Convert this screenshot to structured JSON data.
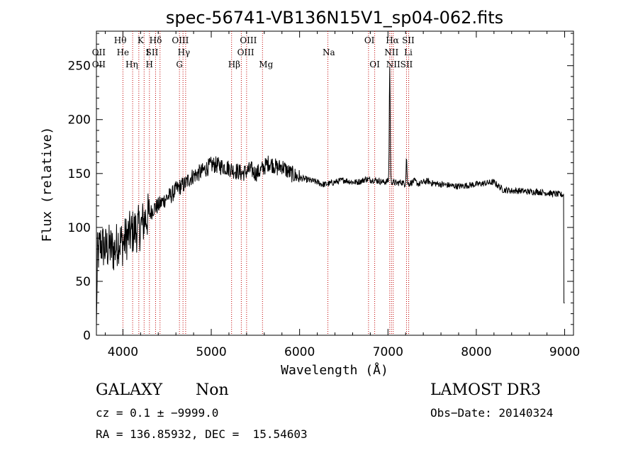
{
  "chart_data": {
    "type": "line",
    "title": "spec-56741-VB136N15V1_sp04-062.fits",
    "xlabel": "Wavelength (Å)",
    "ylabel": "Flux (relative)",
    "xlim": [
      3700,
      9100
    ],
    "ylim": [
      0,
      282
    ],
    "x_ticks": [
      4000,
      5000,
      6000,
      7000,
      8000,
      9000
    ],
    "y_ticks": [
      0,
      50,
      100,
      150,
      200,
      250
    ],
    "x_tick_labels": [
      "4000",
      "5000",
      "6000",
      "7000",
      "8000",
      "9000"
    ],
    "y_tick_labels": [
      "0",
      "50",
      "100",
      "150",
      "200",
      "250"
    ],
    "spectrum": {
      "wavelengths": [
        3700,
        3750,
        3800,
        3850,
        3900,
        3950,
        4000,
        4050,
        4100,
        4150,
        4200,
        4250,
        4300,
        4350,
        4400,
        4450,
        4500,
        4550,
        4600,
        4650,
        4700,
        4750,
        4800,
        4850,
        4900,
        4950,
        5000,
        5050,
        5100,
        5150,
        5200,
        5250,
        5300,
        5350,
        5400,
        5450,
        5500,
        5550,
        5600,
        5650,
        5700,
        5750,
        5800,
        5850,
        5900,
        5950,
        6000,
        6050,
        6100,
        6150,
        6200,
        6250,
        6300,
        6350,
        6400,
        6450,
        6500,
        6550,
        6600,
        6650,
        6700,
        6750,
        6800,
        6850,
        6900,
        6950,
        7000,
        7050,
        7100,
        7150,
        7200,
        7250,
        7300,
        7350,
        7400,
        7450,
        7500,
        7600,
        7700,
        7800,
        7900,
        8000,
        8100,
        8200,
        8300,
        8400,
        8500,
        8600,
        8700,
        8800,
        8900,
        9000
      ],
      "flux": [
        70,
        85,
        80,
        82,
        78,
        88,
        85,
        92,
        95,
        98,
        100,
        108,
        112,
        118,
        120,
        124,
        128,
        130,
        135,
        138,
        140,
        145,
        148,
        150,
        152,
        155,
        158,
        158,
        157,
        156,
        155,
        153,
        152,
        150,
        152,
        154,
        150,
        152,
        156,
        160,
        158,
        155,
        157,
        153,
        150,
        148,
        146,
        145,
        144,
        143,
        142,
        140,
        140,
        141,
        142,
        143,
        144,
        143,
        142,
        142,
        143,
        145,
        144,
        144,
        143,
        142,
        143,
        142,
        141,
        142,
        140,
        141,
        143,
        140,
        142,
        143,
        141,
        140,
        139,
        138,
        139,
        140,
        141,
        142,
        135,
        134,
        134,
        133,
        133,
        132,
        131,
        130
      ]
    },
    "emission_peaks": [
      {
        "wavelength": 7020,
        "flux": 250,
        "label": "Hα"
      },
      {
        "wavelength": 7210,
        "flux": 165,
        "label": "SII"
      }
    ],
    "spectral_lines": [
      {
        "wavelength": 3727,
        "label": "OII",
        "row": 2
      },
      {
        "wavelength": 3727,
        "label": "OII",
        "row": 3
      },
      {
        "wavelength": 3970,
        "label": "Hθ",
        "row": 1
      },
      {
        "wavelength": 4000,
        "label": "He",
        "row": 2
      },
      {
        "wavelength": 4100,
        "label": "Hη",
        "row": 3
      },
      {
        "wavelength": 4200,
        "label": "K",
        "row": 1
      },
      {
        "wavelength": 4280,
        "label": "I",
        "row": 2
      },
      {
        "wavelength": 4300,
        "label": "H",
        "row": 3
      },
      {
        "wavelength": 4330,
        "label": "SII",
        "row": 2
      },
      {
        "wavelength": 4370,
        "label": "Hδ",
        "row": 1
      },
      {
        "wavelength": 4650,
        "label": "OIII",
        "row": 1
      },
      {
        "wavelength": 4690,
        "label": "Hγ",
        "row": 2
      },
      {
        "wavelength": 4640,
        "label": "G",
        "row": 3
      },
      {
        "wavelength": 5260,
        "label": "Hβ",
        "row": 3
      },
      {
        "wavelength": 5420,
        "label": "OIII",
        "row": 1
      },
      {
        "wavelength": 5390,
        "label": "OIII",
        "row": 2
      },
      {
        "wavelength": 5620,
        "label": "Mg",
        "row": 3
      },
      {
        "wavelength": 6330,
        "label": "Na",
        "row": 2
      },
      {
        "wavelength": 6790,
        "label": "OI",
        "row": 1
      },
      {
        "wavelength": 6850,
        "label": "OI",
        "row": 3
      },
      {
        "wavelength": 7050,
        "label": "Hα",
        "row": 1
      },
      {
        "wavelength": 7040,
        "label": "NII",
        "row": 2
      },
      {
        "wavelength": 7060,
        "label": "NII",
        "row": 3
      },
      {
        "wavelength": 7230,
        "label": "SII",
        "row": 1
      },
      {
        "wavelength": 7230,
        "label": "Li",
        "row": 2
      },
      {
        "wavelength": 7210,
        "label": "SII",
        "row": 3
      }
    ],
    "line_positions": [
      4000,
      4110,
      4180,
      4240,
      4300,
      4370,
      4420,
      4640,
      4680,
      4710,
      5230,
      5340,
      5400,
      5580,
      6320,
      6780,
      6850,
      7020,
      7040,
      7060,
      7210,
      7235
    ]
  },
  "info": {
    "class": "GALAXY",
    "subclass": "Non",
    "survey": "LAMOST DR3",
    "cz": "cz = 0.1 ± −9999.0",
    "obs_date": "Obs−Date: 20140324",
    "coords": "RA = 136.85932, DEC =  15.54603"
  },
  "colors": {
    "spectrum": "#000000",
    "line_marker": "#c00000"
  }
}
